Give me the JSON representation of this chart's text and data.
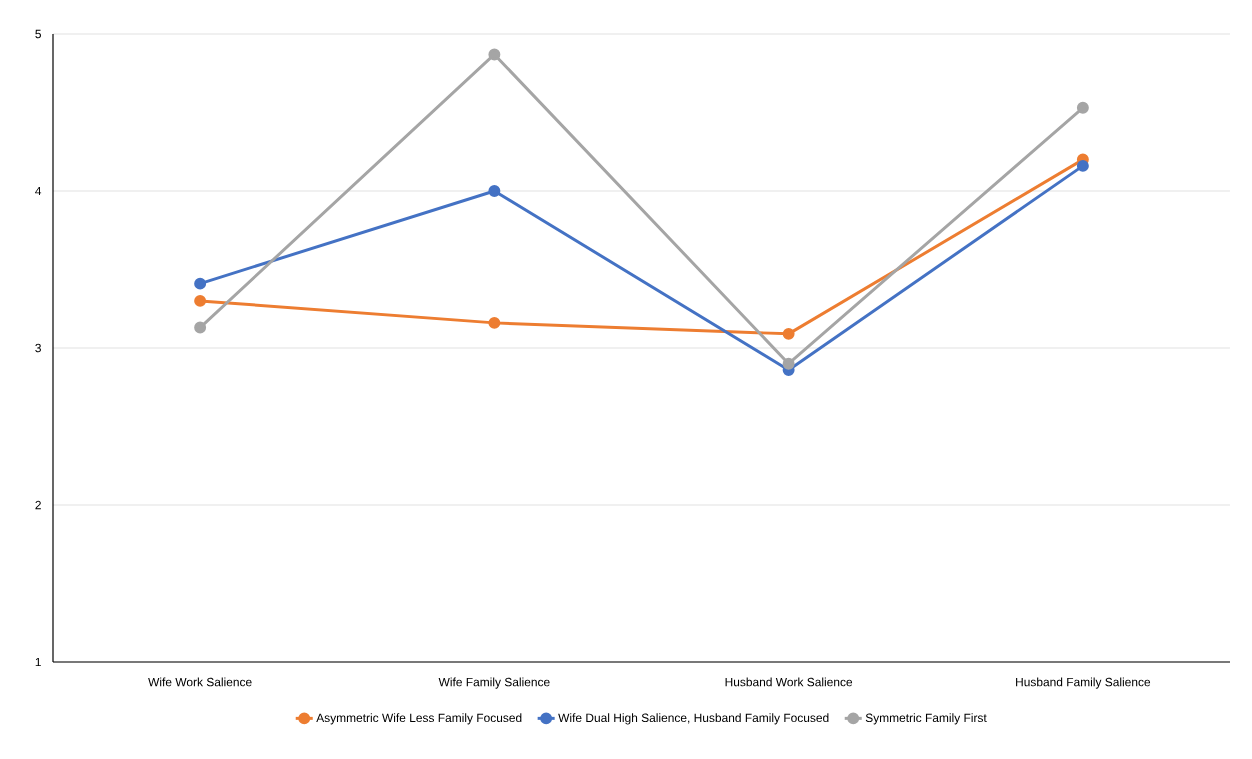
{
  "chart_data": {
    "type": "line",
    "categories": [
      "Wife Work Salience",
      "Wife Family Salience",
      "Husband Work Salience",
      "Husband Family Salience"
    ],
    "series": [
      {
        "name": "Asymmetric Wife Less Family Focused",
        "color": "#ed7d31",
        "values": [
          3.3,
          3.16,
          3.09,
          4.2
        ]
      },
      {
        "name": "Wife Dual High Salience, Husband Family Focused",
        "color": "#4472c4",
        "values": [
          3.41,
          4.0,
          2.86,
          4.16
        ]
      },
      {
        "name": "Symmetric Family First",
        "color": "#a5a5a5",
        "values": [
          3.13,
          4.87,
          2.9,
          4.53
        ]
      }
    ],
    "ylim": [
      1,
      5
    ],
    "yticks": [
      1,
      2,
      3,
      4,
      5
    ],
    "grid": "y",
    "legend": "bottom",
    "marker": "circle",
    "line_style": "solid"
  }
}
